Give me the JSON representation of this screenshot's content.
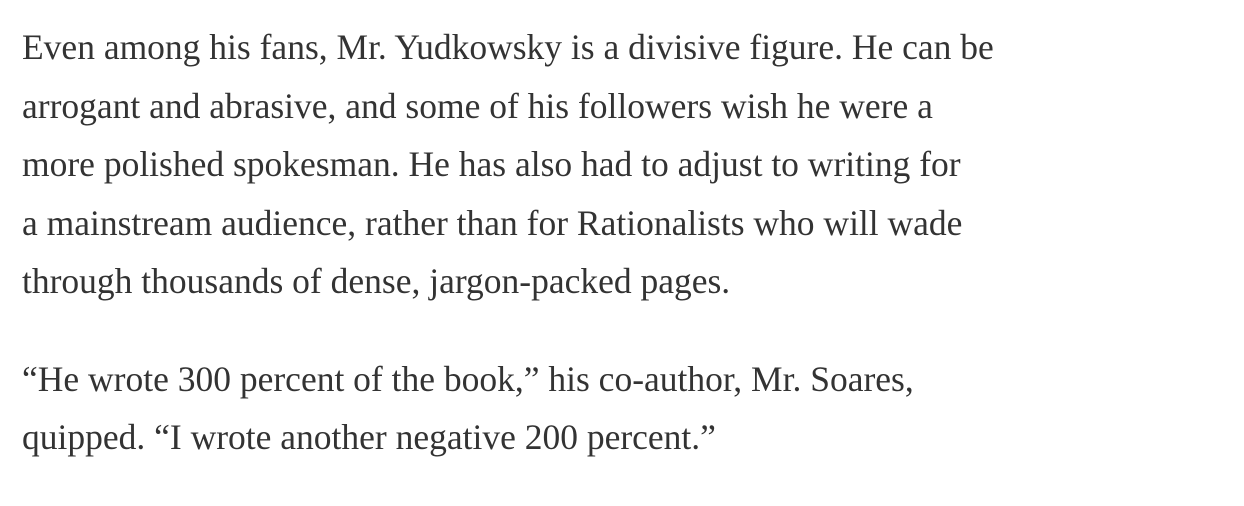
{
  "article": {
    "paragraphs": [
      {
        "lines": [
          "Even among his fans, Mr. Yudkowsky is a divisive figure. He can be",
          "arrogant and abrasive, and some of his followers wish he were a",
          "more polished spokesman. He has also had to adjust to writing for",
          "a mainstream audience, rather than for Rationalists who will wade",
          "through thousands of dense, jargon-packed pages."
        ]
      },
      {
        "lines": [
          "“He wrote 300 percent of the book,” his co-author, Mr. Soares,",
          "quipped. “I wrote another negative 200 percent.”"
        ]
      }
    ]
  }
}
